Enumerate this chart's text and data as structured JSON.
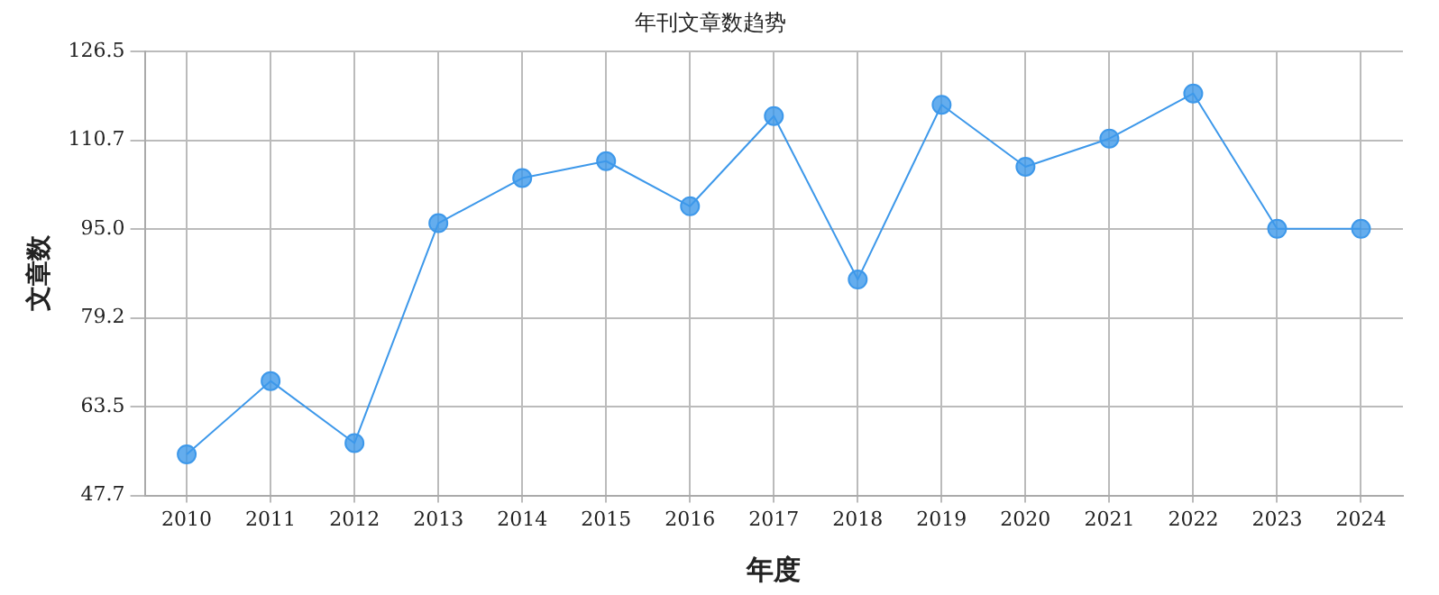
{
  "chart_data": {
    "type": "line",
    "title": "年刊文章数趋势",
    "xlabel": "年度",
    "ylabel": "文章数",
    "categories": [
      "2010",
      "2011",
      "2012",
      "2013",
      "2014",
      "2015",
      "2016",
      "2017",
      "2018",
      "2019",
      "2020",
      "2021",
      "2022",
      "2023",
      "2024"
    ],
    "series": [
      {
        "color": "#3d98ea",
        "values": [
          55,
          68,
          57,
          96,
          104,
          107,
          99,
          115,
          86,
          117,
          106,
          111,
          119,
          95,
          95
        ]
      }
    ],
    "ylim": [
      47.7,
      126.5
    ],
    "yticks": [
      47.7,
      63.5,
      79.2,
      {
        "value": 95,
        "label": "95.0"
      },
      110.7,
      126.5
    ],
    "grid": true,
    "marker": "circle"
  }
}
